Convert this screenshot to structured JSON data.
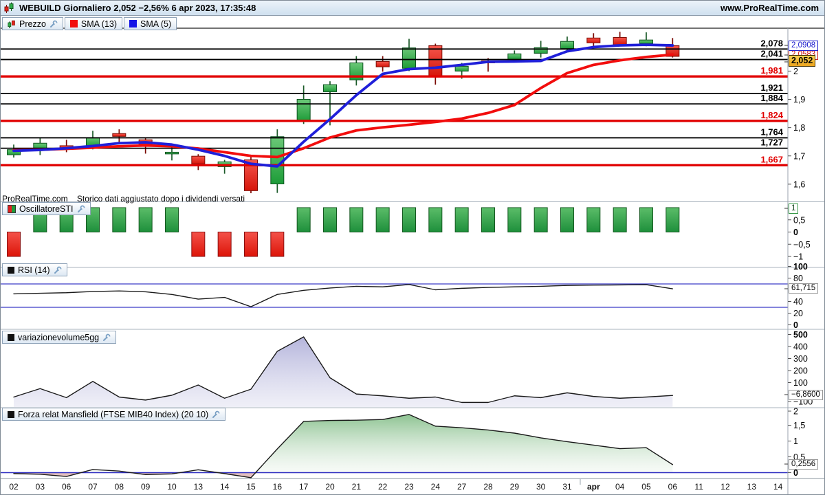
{
  "window": {
    "title": "WEBUILD Giornaliero 2,052 −2,56% 6 apr 2023, 17:35:48",
    "website": "www.ProRealTime.com"
  },
  "legend": {
    "items": [
      {
        "label": "Prezzo",
        "icon": "candles-icon"
      },
      {
        "label": "SMA (13)",
        "icon": "red-square-icon"
      },
      {
        "label": "SMA (5)",
        "icon": "blue-square-icon"
      }
    ]
  },
  "note": {
    "brand": "ProRealTime.com",
    "text": "Storico dati aggiustato dopo i dividendi versati"
  },
  "panels": [
    {
      "label": "OscillatoreSTI",
      "icon": "red-green-square-icon"
    },
    {
      "label": "RSI (14)",
      "icon": "black-square-icon"
    },
    {
      "label": "variazionevolume5gg",
      "icon": "black-square-icon"
    },
    {
      "label": "Forza relat Mansfield (FTSE MIB40 Index) (20 10)",
      "icon": "black-square-icon"
    }
  ],
  "value_boxes": {
    "sma5": "2,0908",
    "sma13": "2,0583",
    "price": "2,052",
    "osc": "1",
    "rsi": "61,715",
    "vol": "−6,8600",
    "mans": "0,2556"
  },
  "colors": {
    "up": "#2fac49",
    "down": "#e8281e",
    "sma5": "#1f1fd9",
    "sma13": "#f20d0d",
    "level_red": "#e10000",
    "level_black": "#000000",
    "rsi_level": "#3a3ac8",
    "price_box": "#eca31b"
  },
  "x_axis": {
    "labels": [
      {
        "t": "02"
      },
      {
        "t": "03"
      },
      {
        "t": "06"
      },
      {
        "t": "07"
      },
      {
        "t": "08"
      },
      {
        "t": "09"
      },
      {
        "t": "10"
      },
      {
        "t": "13"
      },
      {
        "t": "14"
      },
      {
        "t": "15"
      },
      {
        "t": "16"
      },
      {
        "t": "17"
      },
      {
        "t": "20"
      },
      {
        "t": "21"
      },
      {
        "t": "22"
      },
      {
        "t": "23"
      },
      {
        "t": "24"
      },
      {
        "t": "27"
      },
      {
        "t": "28"
      },
      {
        "t": "29"
      },
      {
        "t": "30"
      },
      {
        "t": "31"
      },
      {
        "t": "apr",
        "bold": true
      },
      {
        "t": "04"
      },
      {
        "t": "05"
      },
      {
        "t": "06"
      },
      {
        "t": "11"
      },
      {
        "t": "12"
      },
      {
        "t": "13"
      },
      {
        "t": "14"
      }
    ]
  },
  "chart_data": [
    {
      "type": "candlestick",
      "title": "WEBUILD Giornaliero — price with SMA(13) and SMA(5)",
      "categories": [
        "02",
        "03",
        "06",
        "07",
        "08",
        "09",
        "10",
        "13",
        "14",
        "15",
        "16",
        "17",
        "20",
        "21",
        "22",
        "23",
        "24",
        "27",
        "28",
        "29",
        "30",
        "31",
        "apr",
        "04",
        "05",
        "06"
      ],
      "ohlc": [
        [
          1.704,
          1.74,
          1.694,
          1.722
        ],
        [
          1.722,
          1.764,
          1.703,
          1.745
        ],
        [
          1.736,
          1.757,
          1.713,
          1.724
        ],
        [
          1.733,
          1.789,
          1.723,
          1.765
        ],
        [
          1.779,
          1.794,
          1.747,
          1.769
        ],
        [
          1.757,
          1.764,
          1.708,
          1.737
        ],
        [
          1.707,
          1.73,
          1.684,
          1.713
        ],
        [
          1.699,
          1.706,
          1.65,
          1.672
        ],
        [
          1.662,
          1.686,
          1.637,
          1.679
        ],
        [
          1.686,
          1.696,
          1.568,
          1.577
        ],
        [
          1.601,
          1.794,
          1.569,
          1.768
        ],
        [
          1.823,
          1.949,
          1.813,
          1.9
        ],
        [
          1.927,
          1.964,
          1.808,
          1.952
        ],
        [
          1.969,
          2.053,
          1.949,
          2.029
        ],
        [
          2.034,
          2.053,
          1.998,
          2.015
        ],
        [
          2.01,
          2.114,
          2.0,
          2.082
        ],
        [
          2.09,
          2.097,
          1.952,
          1.981
        ],
        [
          2.0,
          2.029,
          1.973,
          2.017
        ],
        [
          2.036,
          2.046,
          1.998,
          2.029
        ],
        [
          2.041,
          2.073,
          2.034,
          2.061
        ],
        [
          2.063,
          2.107,
          2.048,
          2.083
        ],
        [
          2.08,
          2.122,
          2.068,
          2.105
        ],
        [
          2.117,
          2.134,
          2.088,
          2.1
        ],
        [
          2.119,
          2.139,
          2.088,
          2.093
        ],
        [
          2.097,
          2.137,
          2.088,
          2.11
        ],
        [
          2.09,
          2.117,
          2.048,
          2.052
        ]
      ],
      "series": [
        {
          "name": "SMA (13)",
          "values": [
            1.72,
            1.722,
            1.725,
            1.729,
            1.734,
            1.737,
            1.734,
            1.726,
            1.713,
            1.7,
            1.696,
            1.727,
            1.765,
            1.79,
            1.801,
            1.81,
            1.82,
            1.832,
            1.852,
            1.88,
            1.94,
            1.993,
            2.022,
            2.038,
            2.05,
            2.0583
          ]
        },
        {
          "name": "SMA (5)",
          "values": [
            1.718,
            1.721,
            1.727,
            1.735,
            1.745,
            1.748,
            1.74,
            1.722,
            1.7,
            1.672,
            1.663,
            1.75,
            1.83,
            1.915,
            1.99,
            2.007,
            2.012,
            2.022,
            2.033,
            2.034,
            2.036,
            2.07,
            2.085,
            2.091,
            2.093,
            2.0908
          ]
        }
      ],
      "levels": [
        {
          "label": "2,078",
          "v": 2.078,
          "color": "black"
        },
        {
          "label": "2,041",
          "v": 2.041,
          "color": "black"
        },
        {
          "label": "1,981",
          "v": 1.981,
          "color": "red"
        },
        {
          "label": "1,921",
          "v": 1.921,
          "color": "black"
        },
        {
          "label": "1,884",
          "v": 1.884,
          "color": "black"
        },
        {
          "label": "1,824",
          "v": 1.824,
          "color": "red"
        },
        {
          "label": "1,764",
          "v": 1.764,
          "color": "black"
        },
        {
          "label": "1,727",
          "v": 1.727,
          "color": "black"
        },
        {
          "label": "1,667",
          "v": 1.667,
          "color": "red"
        }
      ],
      "y_ticks": [
        {
          "label": "2",
          "v": 2.0
        },
        {
          "label": "1,9",
          "v": 1.9
        },
        {
          "label": "1,8",
          "v": 1.8
        },
        {
          "label": "1,7",
          "v": 1.7
        },
        {
          "label": "1,6",
          "v": 1.6
        }
      ],
      "ylim": [
        1.56,
        2.15
      ]
    },
    {
      "type": "bar",
      "title": "OscillatoreSTI",
      "values": [
        -1,
        1,
        1,
        1,
        1,
        1,
        1,
        -1,
        -1,
        -1,
        -1,
        1,
        1,
        1,
        1,
        1,
        1,
        1,
        1,
        1,
        1,
        1,
        1,
        1,
        1,
        1
      ],
      "y_ticks": [
        {
          "label": "0,5",
          "v": 0.5
        },
        {
          "label": "0",
          "v": 0,
          "bold": true
        },
        {
          "label": "−0,5",
          "v": -0.5
        },
        {
          "label": "−1",
          "v": -1
        }
      ],
      "boxed_tick": "1",
      "ylim": [
        -1.35,
        1.3
      ]
    },
    {
      "type": "line",
      "title": "RSI (14)",
      "values": [
        53,
        54,
        55,
        57,
        58,
        56.5,
        52,
        44,
        47,
        31,
        52,
        59,
        63,
        66,
        65,
        69,
        60,
        62.5,
        64,
        65,
        66,
        67.5,
        68,
        68.3,
        68.8,
        61.715
      ],
      "levels": [
        70,
        30
      ],
      "current": 61.715,
      "y_ticks": [
        {
          "label": "100",
          "v": 100,
          "bold": true
        },
        {
          "label": "80",
          "v": 80
        },
        {
          "label": "40",
          "v": 40
        },
        {
          "label": "20",
          "v": 20
        },
        {
          "label": "0",
          "v": 0,
          "bold": true
        }
      ],
      "ylim": [
        0,
        100
      ]
    },
    {
      "type": "area",
      "title": "variazionevolume5gg",
      "values": [
        -20,
        50,
        -25,
        110,
        -20,
        -45,
        -5,
        80,
        -30,
        45,
        360,
        480,
        140,
        5,
        -10,
        -30,
        -20,
        -65,
        -65,
        -10,
        -25,
        15,
        -15,
        -30,
        -20,
        -6.86
      ],
      "current": -6.86,
      "y_ticks": [
        {
          "label": "500",
          "v": 500,
          "bold": true
        },
        {
          "label": "400",
          "v": 400
        },
        {
          "label": "300",
          "v": 300
        },
        {
          "label": "200",
          "v": 200
        },
        {
          "label": "100",
          "v": 100
        },
        {
          "label": "−100",
          "v": -100
        }
      ],
      "ylim": [
        -110,
        540
      ]
    },
    {
      "type": "area",
      "title": "Forza relat Mansfield (FTSE MIB40 Index) (20 10)",
      "values": [
        -0.03,
        -0.05,
        -0.12,
        0.1,
        0.05,
        -0.06,
        -0.04,
        0.09,
        -0.03,
        -0.16,
        0.75,
        1.62,
        1.65,
        1.66,
        1.68,
        1.84,
        1.47,
        1.42,
        1.35,
        1.25,
        1.1,
        0.98,
        0.87,
        0.76,
        0.79,
        0.2556
      ],
      "current": 0.2556,
      "zero_line": true,
      "y_ticks": [
        {
          "label": "2",
          "v": 2
        },
        {
          "label": "1,5",
          "v": 1.5
        },
        {
          "label": "1",
          "v": 1
        },
        {
          "label": "0,5",
          "v": 0.5
        },
        {
          "label": "0",
          "v": 0,
          "bold": true
        }
      ],
      "ylim": [
        -0.2,
        2.1
      ]
    }
  ]
}
